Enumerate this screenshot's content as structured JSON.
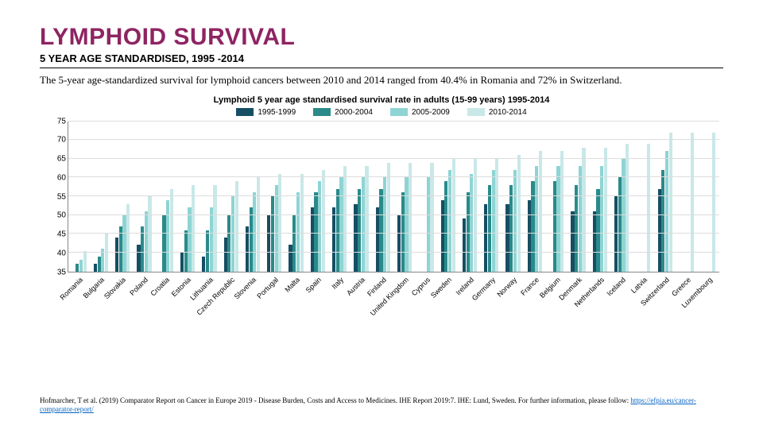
{
  "title": "LYMPHOID SURVIVAL",
  "subtitle": "5 YEAR AGE STANDARDISED, 1995 -2014",
  "description": "The 5-year age-standardized survival for lymphoid cancers between 2010 and 2014 ranged from 40.4% in Romania and 72% in Switzerland.",
  "chart": {
    "title": "Lymphoid 5 year age standardised survival rate in adults (15-99 years) 1995-2014",
    "ylim": [
      35,
      75
    ],
    "ytick_step": 5,
    "grid_color": "#dddddd",
    "axis_color": "#888888",
    "background_color": "#ffffff",
    "legend": [
      {
        "label": "1995-1999",
        "color": "#164e63"
      },
      {
        "label": "2000-2004",
        "color": "#2a8a8a"
      },
      {
        "label": "2005-2009",
        "color": "#8fd4d4"
      },
      {
        "label": "2010-2014",
        "color": "#c9e8e8"
      }
    ],
    "countries": [
      {
        "name": "Romania",
        "values": [
          null,
          37,
          38,
          40.4
        ]
      },
      {
        "name": "Bulgaria",
        "values": [
          37,
          39,
          41,
          45
        ]
      },
      {
        "name": "Slovakia",
        "values": [
          44,
          47,
          50,
          53
        ]
      },
      {
        "name": "Poland",
        "values": [
          42,
          47,
          51,
          55
        ]
      },
      {
        "name": "Croatia",
        "values": [
          null,
          50,
          54,
          57
        ]
      },
      {
        "name": "Estonia",
        "values": [
          40,
          46,
          52,
          58
        ]
      },
      {
        "name": "Lithuania",
        "values": [
          39,
          46,
          52,
          58
        ]
      },
      {
        "name": "Czech Republic",
        "values": [
          44,
          50,
          55,
          59
        ]
      },
      {
        "name": "Slovenia",
        "values": [
          47,
          52,
          56,
          60
        ]
      },
      {
        "name": "Portugal",
        "values": [
          50,
          55,
          58,
          61
        ]
      },
      {
        "name": "Malta",
        "values": [
          42,
          50,
          56,
          61
        ]
      },
      {
        "name": "Spain",
        "values": [
          52,
          56,
          59,
          62
        ]
      },
      {
        "name": "Italy",
        "values": [
          52,
          57,
          60,
          63
        ]
      },
      {
        "name": "Austria",
        "values": [
          53,
          57,
          60,
          63
        ]
      },
      {
        "name": "Finland",
        "values": [
          52,
          57,
          60,
          64
        ]
      },
      {
        "name": "United Kingdom",
        "values": [
          50,
          56,
          60,
          64
        ]
      },
      {
        "name": "Cyprus",
        "values": [
          null,
          null,
          60,
          64
        ]
      },
      {
        "name": "Sweden",
        "values": [
          54,
          59,
          62,
          65
        ]
      },
      {
        "name": "Ireland",
        "values": [
          49,
          56,
          61,
          65
        ]
      },
      {
        "name": "Germany",
        "values": [
          53,
          58,
          62,
          65
        ]
      },
      {
        "name": "Norway",
        "values": [
          53,
          58,
          62,
          66
        ]
      },
      {
        "name": "France",
        "values": [
          54,
          59,
          63,
          67
        ]
      },
      {
        "name": "Belgium",
        "values": [
          null,
          59,
          63,
          67
        ]
      },
      {
        "name": "Denmark",
        "values": [
          51,
          58,
          63,
          68
        ]
      },
      {
        "name": "Netherlands",
        "values": [
          51,
          57,
          63,
          68
        ]
      },
      {
        "name": "Iceland",
        "values": [
          55,
          60,
          65,
          69
        ]
      },
      {
        "name": "Latvia",
        "values": [
          null,
          null,
          null,
          69
        ]
      },
      {
        "name": "Switzerland",
        "values": [
          57,
          62,
          67,
          72
        ]
      },
      {
        "name": "Greece",
        "values": [
          null,
          null,
          null,
          72
        ]
      },
      {
        "name": "Luxembourg",
        "values": [
          null,
          null,
          null,
          72
        ]
      }
    ]
  },
  "footer": {
    "text_before": "Hofmarcher, T et al. (2019) Comparator Report on Cancer in Europe 2019 - Disease Burden, Costs and Access to Medicines. IHE Report 2019:7. IHE: Lund, Sweden. For further information, please follow: ",
    "link_text": "https://efpia.eu/cancer-comparator-report/",
    "link_href": "https://efpia.eu/cancer-comparator-report/"
  }
}
